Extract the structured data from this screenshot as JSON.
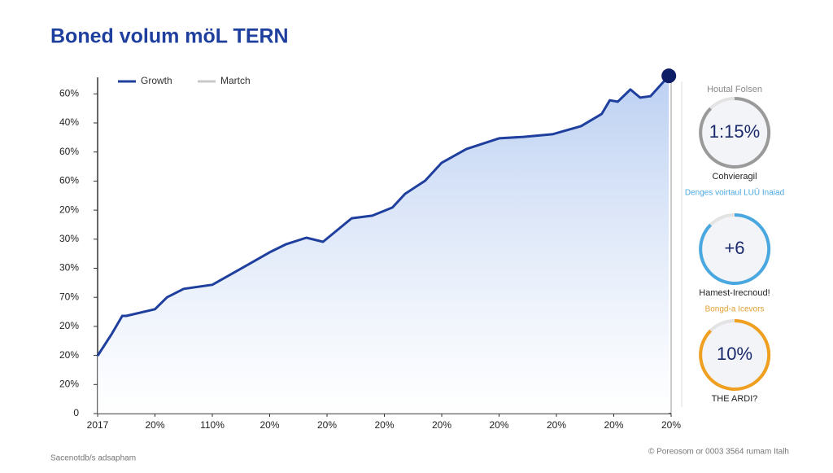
{
  "chart_data": {
    "type": "area",
    "title": "Boned volum möL TERN",
    "x": [
      0,
      0.25,
      0.43,
      0.5,
      1,
      1.21,
      1.5,
      2,
      2.5,
      3,
      3.29,
      3.64,
      3.93,
      4.43,
      4.79,
      5.14,
      5.36,
      5.71,
      6,
      6.43,
      7,
      7.43,
      7.93,
      8.43,
      8.79,
      8.93,
      9.07,
      9.29,
      9.46,
      9.64,
      9.96
    ],
    "series": [
      {
        "name": "Growth",
        "color": "#1f3f9e",
        "values": [
          1.99,
          2.75,
          3.36,
          3.36,
          3.59,
          4.0,
          4.29,
          4.43,
          4.99,
          5.55,
          5.83,
          6.05,
          5.91,
          6.72,
          6.81,
          7.09,
          7.56,
          8.01,
          8.63,
          9.1,
          9.47,
          9.52,
          9.61,
          9.89,
          10.31,
          10.78,
          10.73,
          11.15,
          10.87,
          10.92,
          11.62
        ]
      },
      {
        "name": "Martch",
        "color": "#c8c8c8",
        "values": [
          null,
          null,
          null,
          null,
          null,
          null,
          null,
          null,
          null,
          null,
          null,
          null,
          null,
          null,
          null,
          null,
          null,
          null,
          null,
          null,
          null,
          null,
          null,
          null,
          null,
          null,
          null,
          null,
          null,
          null,
          null
        ]
      }
    ],
    "xlim": [
      0,
      10
    ],
    "xticks": [
      {
        "value": 0,
        "label": "2017"
      },
      {
        "value": 1,
        "label": "20%"
      },
      {
        "value": 2,
        "label": "110%"
      },
      {
        "value": 3,
        "label": "20%"
      },
      {
        "value": 4,
        "label": "20%"
      },
      {
        "value": 5,
        "label": "20%"
      },
      {
        "value": 6,
        "label": "20%"
      },
      {
        "value": 7,
        "label": "20%"
      },
      {
        "value": 8,
        "label": "20%"
      },
      {
        "value": 9,
        "label": "20%"
      },
      {
        "value": 10,
        "label": "20%"
      }
    ],
    "ylim": [
      0,
      11.7
    ],
    "yticks": [
      0,
      {
        "value": 1,
        "label": "20%"
      },
      {
        "value": 2,
        "label": "20%"
      },
      {
        "value": 3,
        "label": "20%"
      },
      {
        "value": 4,
        "label": "70%"
      },
      {
        "value": 5,
        "label": "30%"
      },
      {
        "value": 6,
        "label": "30%"
      },
      {
        "value": 7,
        "label": "20%"
      },
      {
        "value": 8,
        "label": "60%"
      },
      {
        "value": 9,
        "label": "60%"
      },
      {
        "value": 10,
        "label": "40%"
      },
      {
        "value": 11,
        "label": "60%"
      }
    ]
  },
  "sidebar": {
    "heading": "Houtal Folsen",
    "gauges": [
      {
        "value": "1:15%",
        "caption": "Cohvieragil",
        "subcaption": "Denges voirtaul LUÜ Inaiad",
        "color": "#9a9a9a"
      },
      {
        "value": "+6",
        "caption": "Hamest-Irecnoud!",
        "subcaption": "Bongd-a Icevors",
        "color": "#4aa8e0"
      },
      {
        "value": "10%",
        "caption": "THE ARDI?",
        "subcaption": null,
        "color": "#f0a020"
      }
    ]
  },
  "footer": {
    "left": "Sacenotdb/s adsapham",
    "right": "© Poreosom or 0003 3564 rumam Italh"
  }
}
